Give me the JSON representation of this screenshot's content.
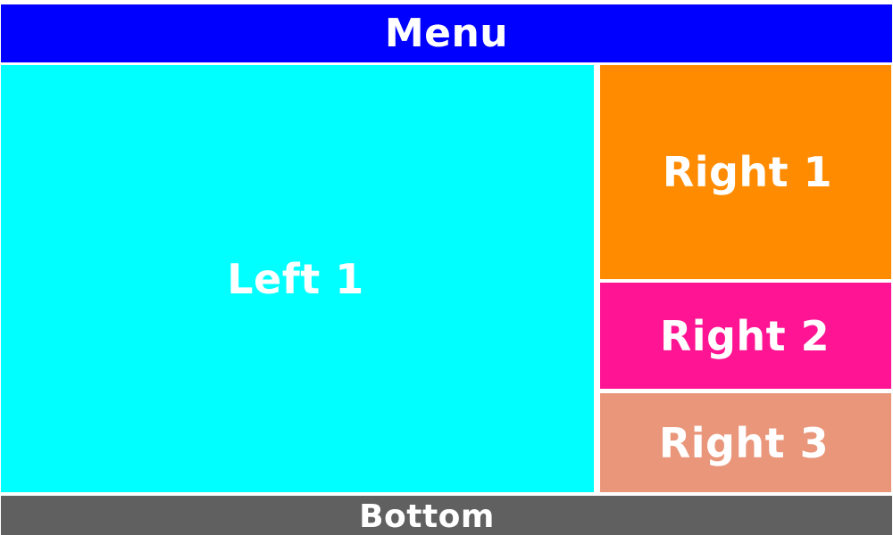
{
  "panels": {
    "menu": {
      "label": "Menu",
      "color": "#0000ff"
    },
    "left1": {
      "label": "Left 1",
      "color": "#00ffff"
    },
    "right1": {
      "label": "Right 1",
      "color": "#ff8c00"
    },
    "right2": {
      "label": "Right 2",
      "color": "#ff1493"
    },
    "right3": {
      "label": "Right 3",
      "color": "#e9967a"
    },
    "bottom": {
      "label": "Bottom",
      "color": "#606060"
    }
  }
}
